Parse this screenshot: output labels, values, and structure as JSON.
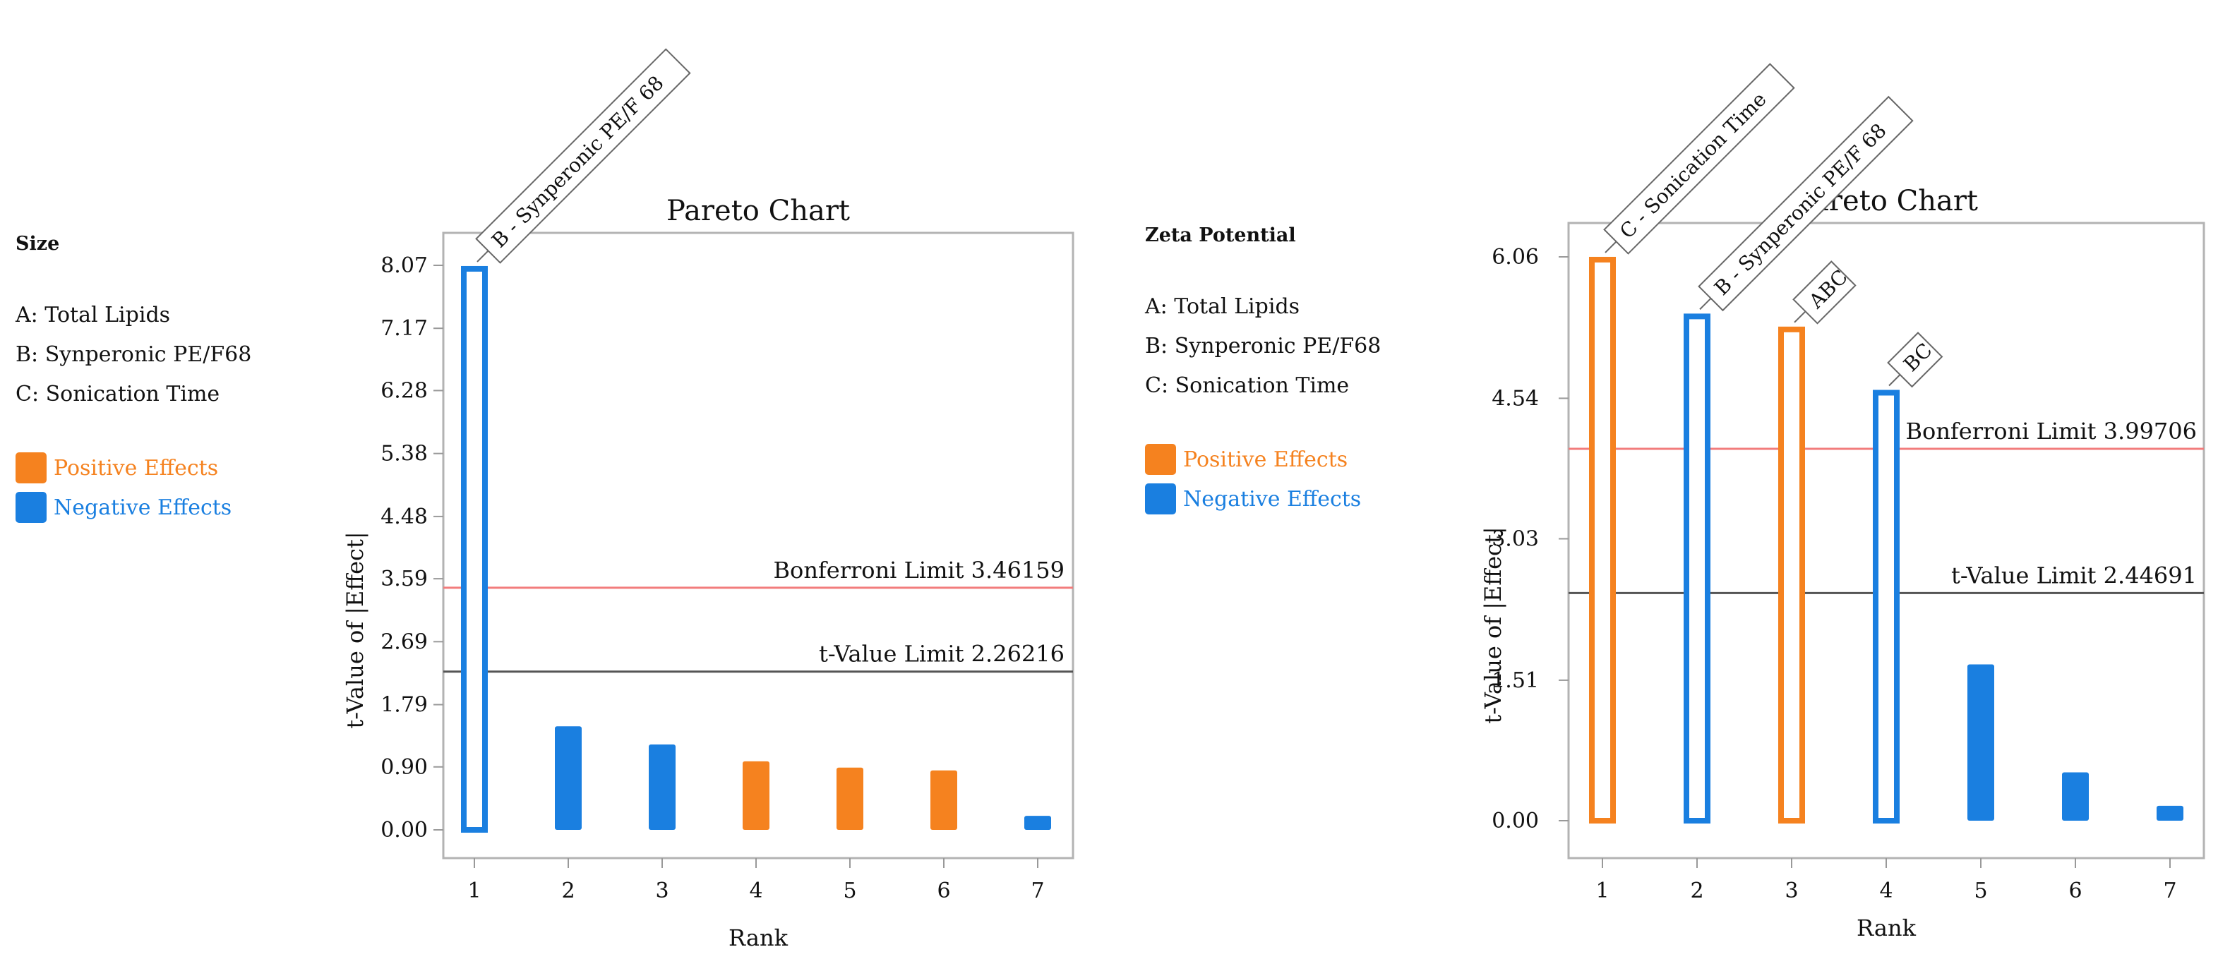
{
  "colors": {
    "positive": "#f5821f",
    "negative": "#1a7fe0",
    "bonferroni": "#f27c7c",
    "tlimit": "#555555"
  },
  "legends": [
    {
      "title": "Size",
      "factors": [
        "A: Total Lipids",
        "B: Synperonic PE/F68",
        "C: Sonication Time"
      ],
      "positive_label": "Positive Effects",
      "negative_label": "Negative Effects"
    },
    {
      "title": "Zeta Potential",
      "factors": [
        "A: Total Lipids",
        "B: Synperonic PE/F68",
        "C: Sonication Time"
      ],
      "positive_label": "Positive Effects",
      "negative_label": "Negative Effects"
    }
  ],
  "chart_data": [
    {
      "type": "bar",
      "title": "Pareto Chart",
      "xlabel": "Rank",
      "ylabel": "t-Value of |Effect|",
      "ylim": [
        0,
        8.07
      ],
      "yticks": [
        "8.07",
        "7.17",
        "6.28",
        "5.38",
        "4.48",
        "3.59",
        "2.69",
        "1.79",
        "0.90",
        "0.00"
      ],
      "categories": [
        "1",
        "2",
        "3",
        "4",
        "5",
        "6",
        "7"
      ],
      "values": [
        8.02,
        1.48,
        1.22,
        0.98,
        0.89,
        0.85,
        0.2
      ],
      "effects": [
        "negative",
        "negative",
        "negative",
        "positive",
        "positive",
        "positive",
        "negative"
      ],
      "highlighted": [
        true,
        false,
        false,
        false,
        false,
        false,
        false
      ],
      "bar_labels": [
        "B - Synperonic PE/F 68",
        "",
        "",
        "",
        "",
        "",
        ""
      ],
      "bonferroni_limit": {
        "label": "Bonferroni Limit 3.46159",
        "value": 3.46159
      },
      "t_value_limit": {
        "label": "t-Value Limit 2.26216",
        "value": 2.26216
      }
    },
    {
      "type": "bar",
      "title": "Pareto Chart",
      "xlabel": "Rank",
      "ylabel": "t-Value of |Effect|",
      "ylim": [
        0,
        6.06
      ],
      "yticks": [
        "6.06",
        "4.54",
        "3.03",
        "1.51",
        "0.00"
      ],
      "categories": [
        "1",
        "2",
        "3",
        "4",
        "5",
        "6",
        "7"
      ],
      "values": [
        6.03,
        5.42,
        5.28,
        4.6,
        1.68,
        0.52,
        0.16
      ],
      "effects": [
        "positive",
        "negative",
        "positive",
        "negative",
        "negative",
        "negative",
        "negative"
      ],
      "highlighted": [
        true,
        true,
        true,
        true,
        false,
        false,
        false
      ],
      "bar_labels": [
        "C - Sonication Time",
        "B - Synperonic PE/F 68",
        "ABC",
        "BC",
        "",
        "",
        ""
      ],
      "bonferroni_limit": {
        "label": "Bonferroni Limit 3.99706",
        "value": 3.99706
      },
      "t_value_limit": {
        "label": "t-Value Limit 2.44691",
        "value": 2.44691
      }
    }
  ]
}
